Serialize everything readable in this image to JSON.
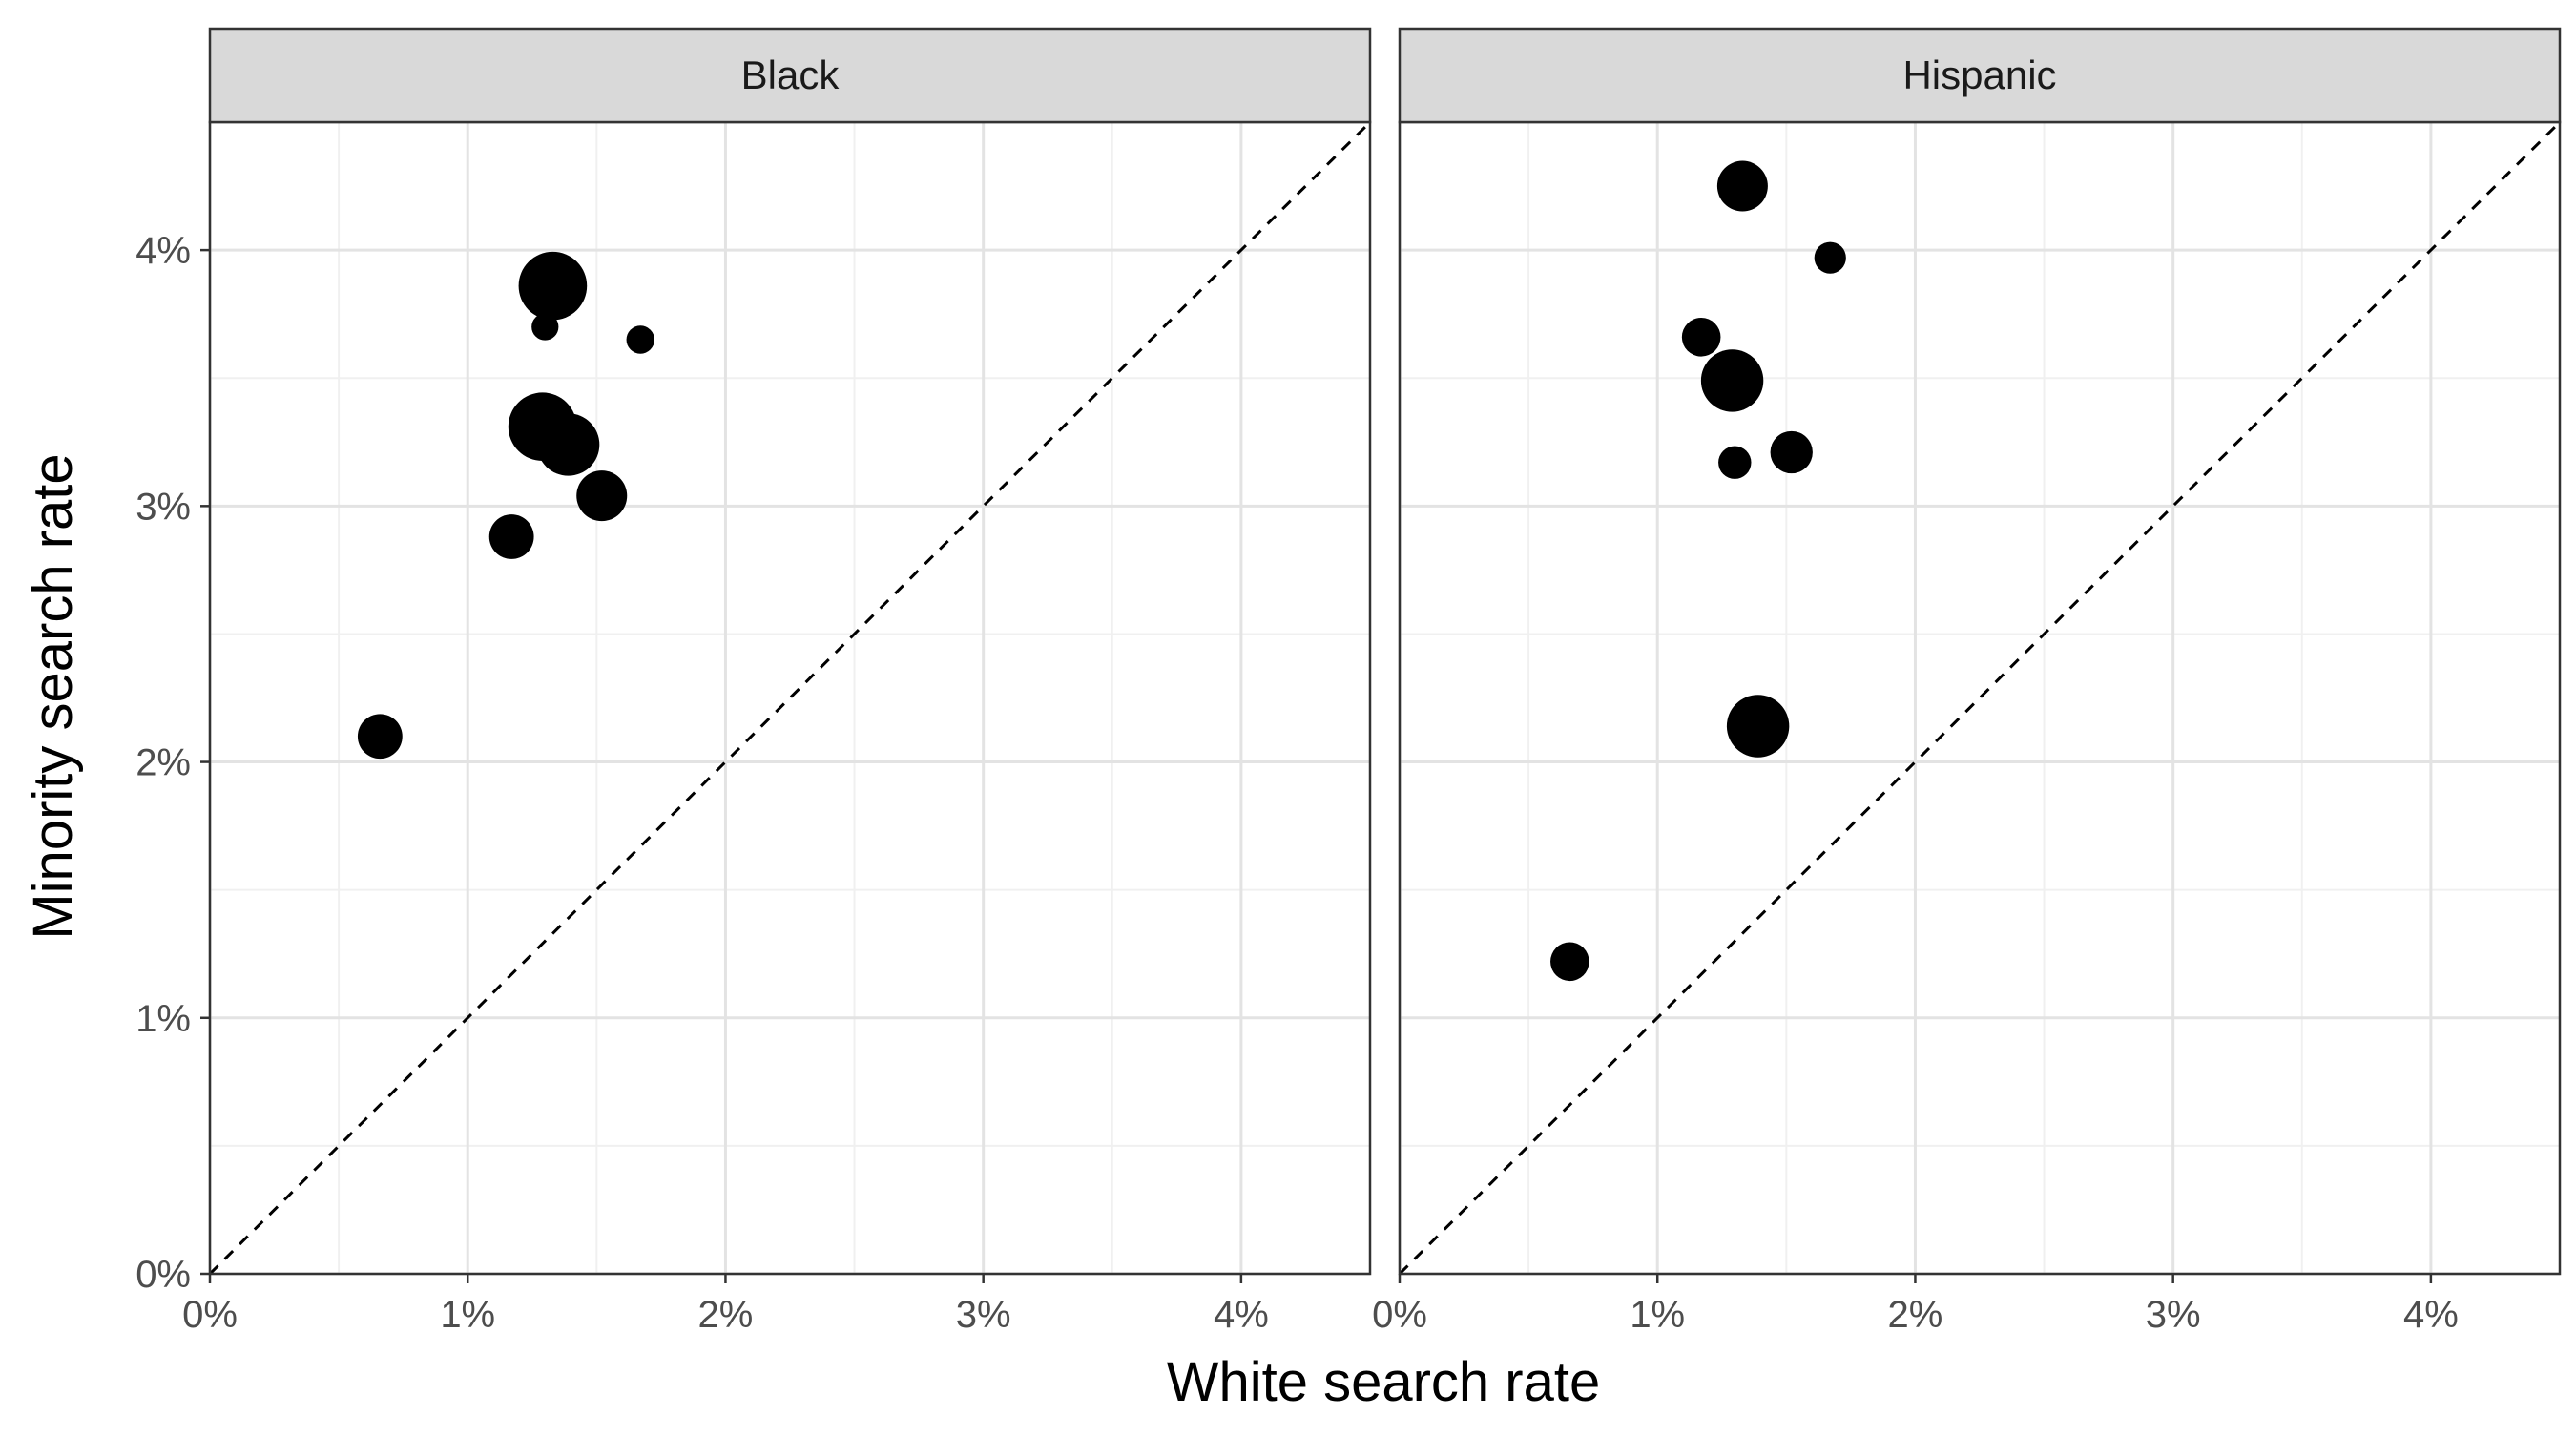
{
  "chart_data": {
    "type": "scatter",
    "xlabel": "White search rate",
    "ylabel": "Minority search rate",
    "xlim": [
      0,
      4.5
    ],
    "ylim": [
      0,
      4.5
    ],
    "x_ticks": [
      "0%",
      "1%",
      "2%",
      "3%",
      "4%"
    ],
    "y_ticks": [
      "0%",
      "1%",
      "2%",
      "3%",
      "4%"
    ],
    "reference_line": "y = x (dashed)",
    "grid": true,
    "units": "percent",
    "panels": [
      {
        "label": "Black",
        "points": [
          {
            "x": 0.66,
            "y": 2.1,
            "size": 2
          },
          {
            "x": 1.17,
            "y": 2.88,
            "size": 2
          },
          {
            "x": 1.29,
            "y": 3.31,
            "size": 4
          },
          {
            "x": 1.3,
            "y": 3.7,
            "size": 0.5
          },
          {
            "x": 1.33,
            "y": 3.86,
            "size": 4
          },
          {
            "x": 1.39,
            "y": 3.24,
            "size": 3.5
          },
          {
            "x": 1.52,
            "y": 3.04,
            "size": 2.5
          },
          {
            "x": 1.67,
            "y": 3.65,
            "size": 0.6
          }
        ]
      },
      {
        "label": "Hispanic",
        "points": [
          {
            "x": 0.66,
            "y": 1.22,
            "size": 1.5
          },
          {
            "x": 1.17,
            "y": 3.66,
            "size": 1.5
          },
          {
            "x": 1.29,
            "y": 3.49,
            "size": 3.5
          },
          {
            "x": 1.3,
            "y": 3.17,
            "size": 1
          },
          {
            "x": 1.33,
            "y": 4.25,
            "size": 2.5
          },
          {
            "x": 1.39,
            "y": 2.14,
            "size": 3.5
          },
          {
            "x": 1.52,
            "y": 3.21,
            "size": 1.8
          },
          {
            "x": 1.67,
            "y": 3.97,
            "size": 0.9
          }
        ]
      }
    ]
  }
}
